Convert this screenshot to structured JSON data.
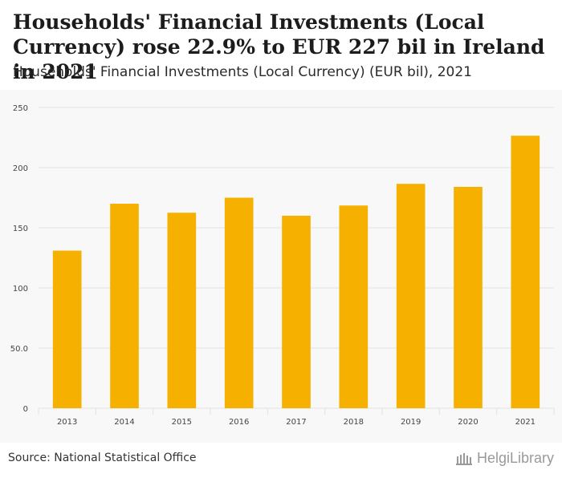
{
  "title": "Households' Financial Investments (Local Currency) rose 22.9% to EUR 227 bil in Ireland in 2021",
  "subtitle": "Households' Financial Investments (Local Currency) (EUR bil), 2021",
  "source": "Source: National Statistical Office",
  "brand": "HelgiLibrary",
  "colors": {
    "bar": "#f5b000",
    "grid": "#e2e2e2",
    "axis_text": "#444444"
  },
  "chart_data": {
    "type": "bar",
    "title": "Households' Financial Investments (Local Currency) (EUR bil), 2021",
    "categories": [
      "2013",
      "2014",
      "2015",
      "2016",
      "2017",
      "2018",
      "2019",
      "2020",
      "2021"
    ],
    "values": [
      131,
      170,
      162.5,
      175,
      160,
      168.5,
      186.5,
      184,
      226.5
    ],
    "y_ticks": [
      0,
      50,
      100,
      150,
      200,
      250
    ],
    "y_tick_labels": [
      "0",
      "50.0",
      "100",
      "150",
      "200",
      "250"
    ],
    "ylim": [
      0,
      250
    ],
    "xlabel": "",
    "ylabel": "",
    "grid": true
  }
}
